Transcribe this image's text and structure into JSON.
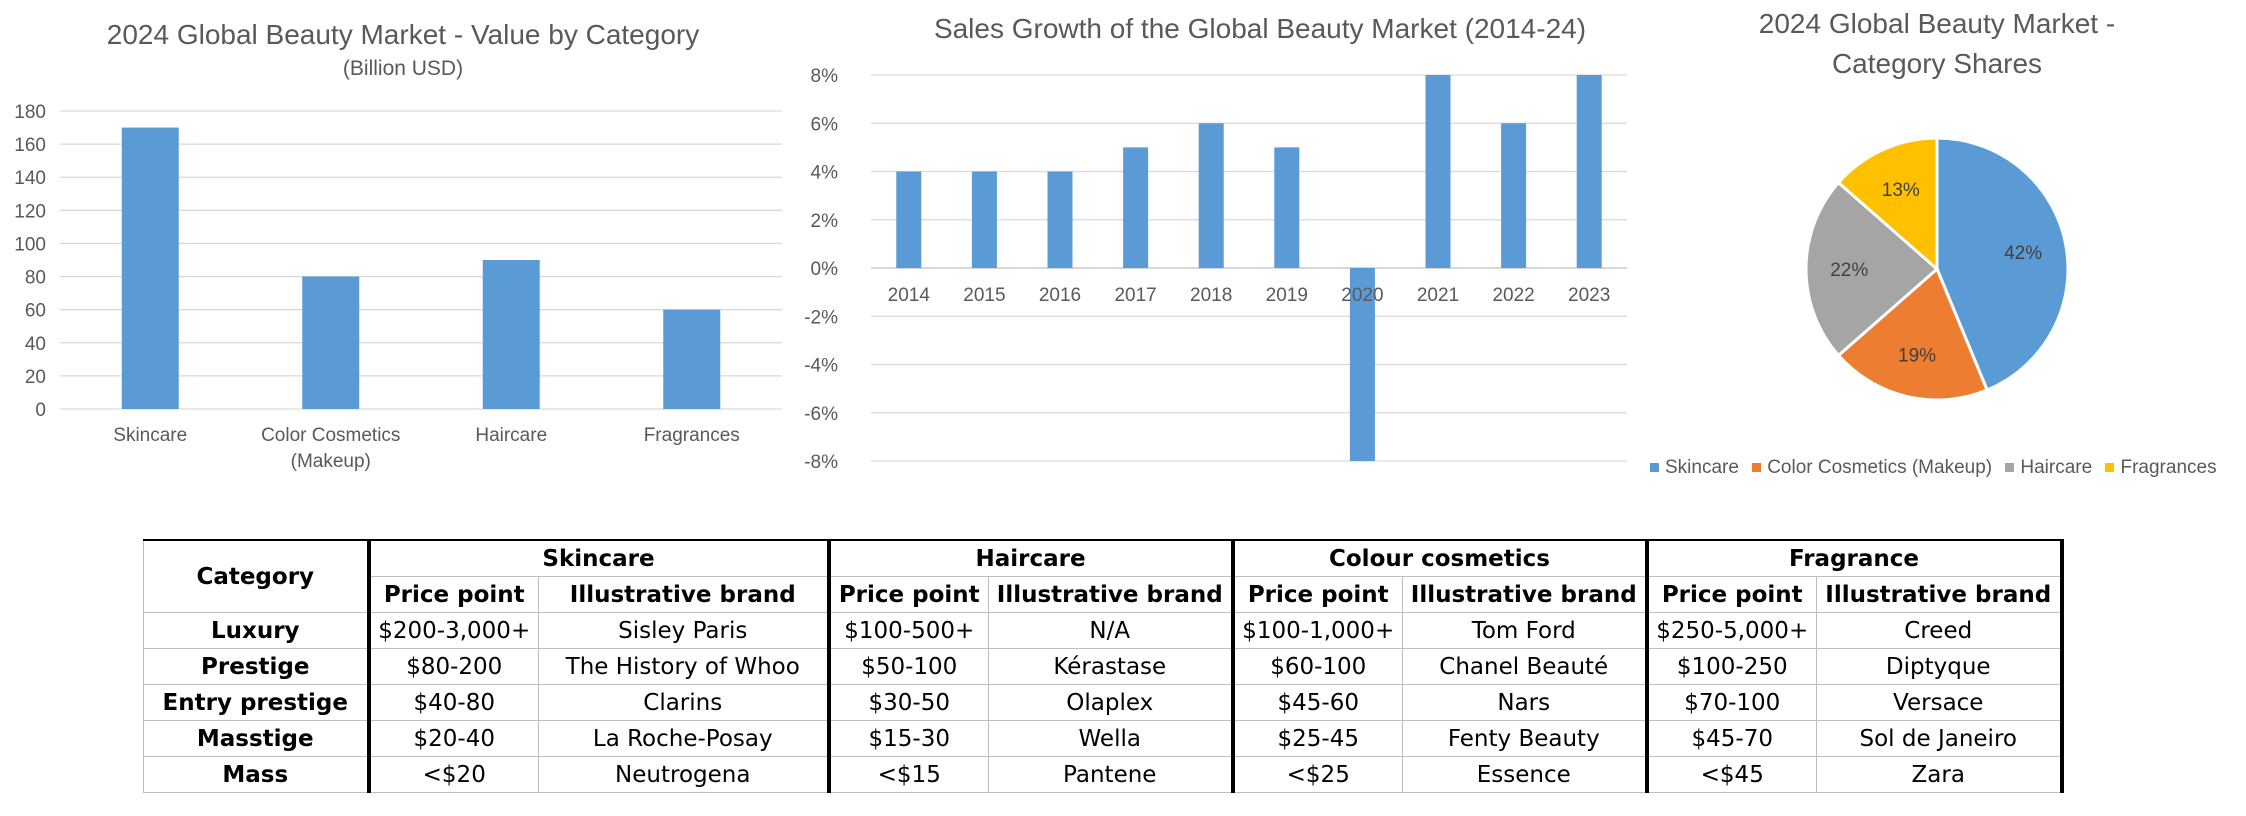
{
  "chart_data": [
    {
      "type": "bar",
      "title": "2024 Global Beauty Market - Value by Category",
      "subtitle": "(Billion USD)",
      "categories": [
        "Skincare",
        "Color Cosmetics (Makeup)",
        "Haircare",
        "Fragrances"
      ],
      "category_lines": [
        [
          "Skincare"
        ],
        [
          "Color Cosmetics",
          "(Makeup)"
        ],
        [
          "Haircare"
        ],
        [
          "Fragrances"
        ]
      ],
      "values": [
        170,
        80,
        90,
        60
      ],
      "ylim": [
        0,
        180
      ],
      "yticks": [
        "0",
        "20",
        "40",
        "60",
        "80",
        "100",
        "120",
        "140",
        "160",
        "180"
      ],
      "grid": true,
      "color": "#5b9bd5"
    },
    {
      "type": "bar",
      "title": "Sales Growth of the Global Beauty Market (2014-24)",
      "categories": [
        "2014",
        "2015",
        "2016",
        "2017",
        "2018",
        "2019",
        "2020",
        "2021",
        "2022",
        "2023"
      ],
      "values": [
        4,
        4,
        4,
        5,
        6,
        5,
        -8,
        8,
        6,
        8
      ],
      "unit": "%",
      "ylim": [
        -8,
        8
      ],
      "yticks": [
        "-8%",
        "-6%",
        "-4%",
        "-2%",
        "0%",
        "2%",
        "4%",
        "6%",
        "8%"
      ],
      "grid": true,
      "color": "#5b9bd5"
    },
    {
      "type": "pie",
      "title_lines": [
        "2024 Global Beauty Market -",
        "Category Shares"
      ],
      "labels": [
        "Skincare",
        "Color Cosmetics (Makeup)",
        "Haircare",
        "Fragrances"
      ],
      "values": [
        42,
        19,
        22,
        13
      ],
      "value_labels": [
        "42%",
        "19%",
        "22%",
        "13%"
      ],
      "colors": [
        "#5b9bd5",
        "#ed7d31",
        "#a5a5a5",
        "#ffc000"
      ],
      "legend_position": "bottom"
    }
  ],
  "table": {
    "category_header": "Category",
    "groups": [
      "Skincare",
      "Haircare",
      "Colour cosmetics",
      "Fragrance"
    ],
    "subheaders": [
      "Price point",
      "Illustrative brand"
    ],
    "rows": [
      {
        "label": "Luxury",
        "cells": [
          "$200-3,000+",
          "Sisley Paris",
          "$100-500+",
          "N/A",
          "$100-1,000+",
          "Tom Ford",
          "$250-5,000+",
          "Creed"
        ]
      },
      {
        "label": "Prestige",
        "cells": [
          "$80-200",
          "The History of Whoo",
          "$50-100",
          "Kérastase",
          "$60-100",
          "Chanel Beauté",
          "$100-250",
          "Diptyque"
        ]
      },
      {
        "label": "Entry prestige",
        "cells": [
          "$40-80",
          "Clarins",
          "$30-50",
          "Olaplex",
          "$45-60",
          "Nars",
          "$70-100",
          "Versace"
        ]
      },
      {
        "label": "Masstige",
        "cells": [
          "$20-40",
          "La Roche-Posay",
          "$15-30",
          "Wella",
          "$25-45",
          "Fenty Beauty",
          "$45-70",
          "Sol de Janeiro"
        ]
      },
      {
        "label": "Mass",
        "cells": [
          "<$20",
          "Neutrogena",
          "<$15",
          "Pantene",
          "<$25",
          "Essence",
          "<$45",
          "Zara"
        ]
      }
    ]
  }
}
